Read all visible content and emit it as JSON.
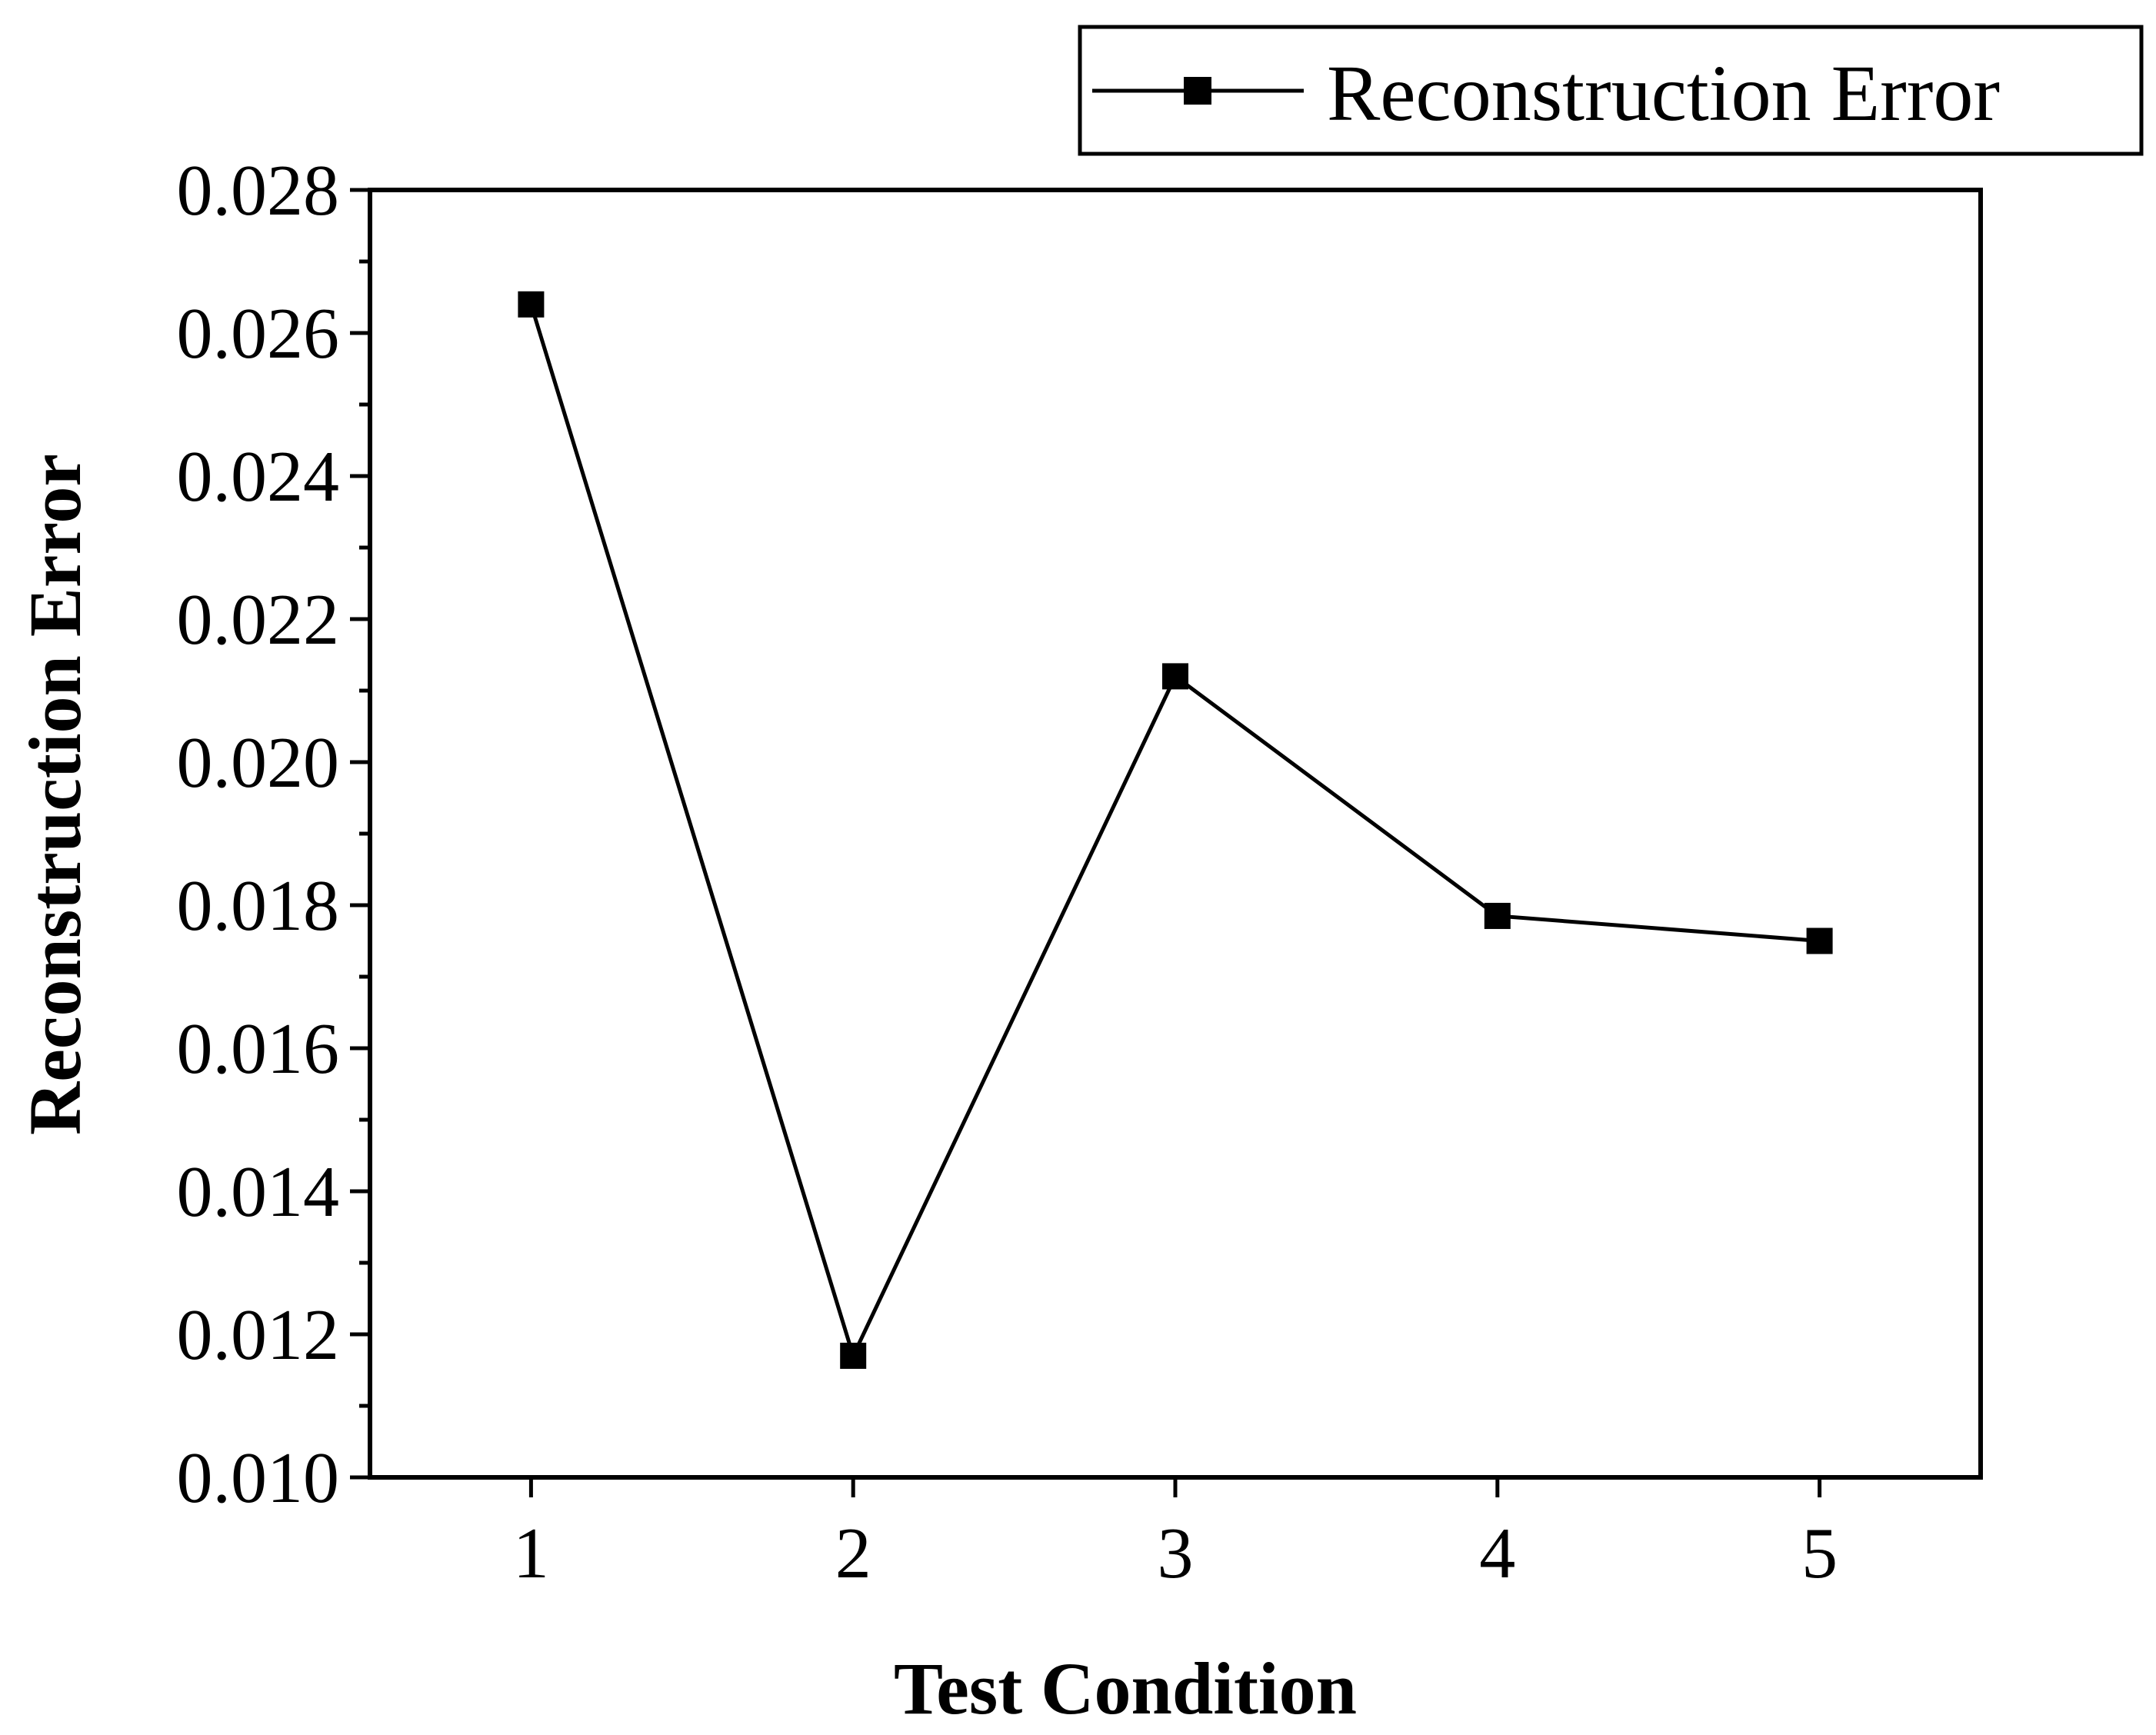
{
  "chart_data": {
    "type": "line",
    "title": "",
    "xlabel": "Test Condition",
    "ylabel": "Reconstruction Error",
    "x": [
      1,
      2,
      3,
      4,
      5
    ],
    "x_tick_labels": [
      "1",
      "2",
      "3",
      "4",
      "5"
    ],
    "xlim": [
      0.5,
      5.5
    ],
    "ylim": [
      0.01,
      0.028
    ],
    "y_ticks": [
      0.01,
      0.012,
      0.014,
      0.016,
      0.018,
      0.02,
      0.022,
      0.024,
      0.026,
      0.028
    ],
    "y_tick_labels": [
      "0.010",
      "0.012",
      "0.014",
      "0.016",
      "0.018",
      "0.020",
      "0.022",
      "0.024",
      "0.026",
      "0.028"
    ],
    "grid": false,
    "legend_position": "top-right, above plot",
    "series": [
      {
        "name": "Reconstruction Error",
        "marker": "square",
        "color": "#000000",
        "values": [
          0.0264,
          0.0117,
          0.0212,
          0.01785,
          0.0175
        ]
      }
    ]
  }
}
